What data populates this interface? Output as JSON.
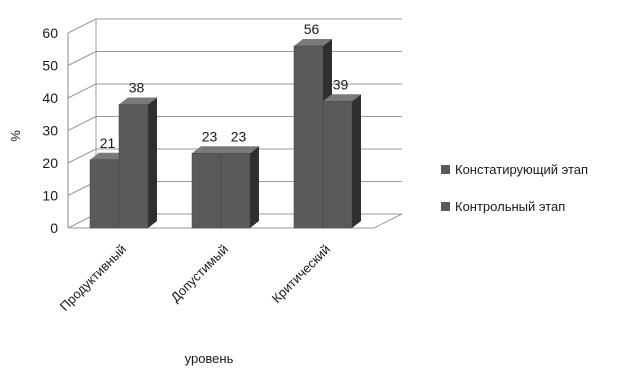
{
  "chart_data": {
    "type": "bar",
    "style": "3d-clustered-column",
    "categories": [
      "Продуктивный",
      "Допустимый",
      "Критический"
    ],
    "series": [
      {
        "name": "Констатирующий этап",
        "values": [
          21,
          23,
          56
        ],
        "color": "#5a5a5a"
      },
      {
        "name": "Контрольный этап",
        "values": [
          38,
          23,
          39
        ],
        "color": "#5a5a5a"
      }
    ],
    "xlabel": "уровень",
    "ylabel": "%",
    "ylim": [
      0,
      60
    ],
    "yticks": [
      0,
      10,
      20,
      30,
      40,
      50,
      60
    ],
    "grid": true,
    "legend": "right",
    "data_labels": true
  }
}
